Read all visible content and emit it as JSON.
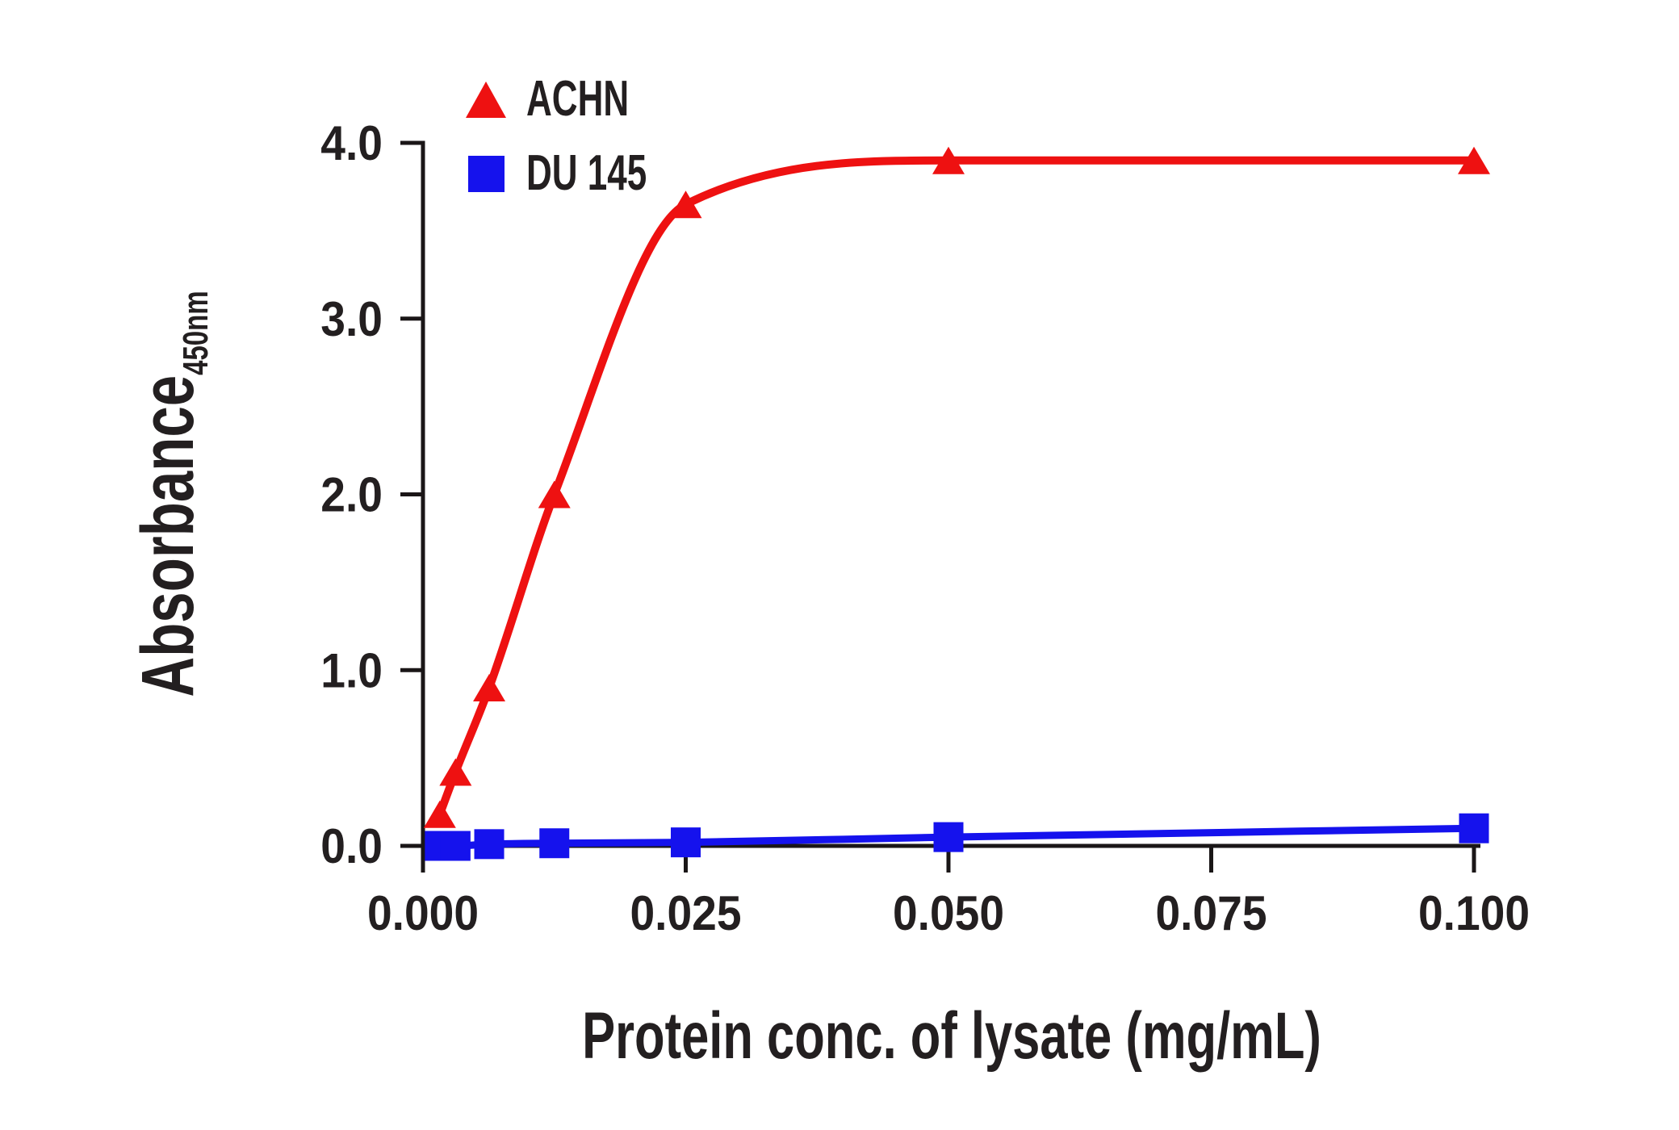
{
  "figure": {
    "background": "#ffffff",
    "text_color": "#231F20",
    "axis_color": "#1A1617"
  },
  "chart_data": {
    "type": "line",
    "title": "",
    "xlabel": "Protein conc. of lysate (mg/mL)",
    "ylabel": "Absorbance",
    "ylabel_subscript": "450nm",
    "x": [
      0.0016,
      0.0031,
      0.0063,
      0.0125,
      0.025,
      0.05,
      0.1
    ],
    "series": [
      {
        "name": "ACHN",
        "marker": "triangle",
        "color": "#EE1111",
        "values": [
          0.18,
          0.42,
          0.9,
          2.0,
          3.65,
          3.9,
          3.9
        ]
      },
      {
        "name": "DU 145",
        "marker": "square",
        "color": "#1512ED",
        "values": [
          0.0,
          0.0,
          0.01,
          0.015,
          0.02,
          0.05,
          0.1
        ]
      }
    ],
    "xlim": [
      0,
      0.1045
    ],
    "ylim": [
      0,
      4.0
    ],
    "x_ticks": {
      "values": [
        0,
        0.025,
        0.05,
        0.075,
        0.1
      ],
      "labels": [
        "0.000",
        "0.025",
        "0.050",
        "0.075",
        "0.100"
      ]
    },
    "y_ticks": {
      "values": [
        0,
        1,
        2,
        3,
        4
      ],
      "labels": [
        "0.0",
        "1.0",
        "2.0",
        "3.0",
        "4.0"
      ]
    },
    "grid": false,
    "legend_position": "top-left-inside",
    "curve_style": "smooth-sigmoid"
  }
}
